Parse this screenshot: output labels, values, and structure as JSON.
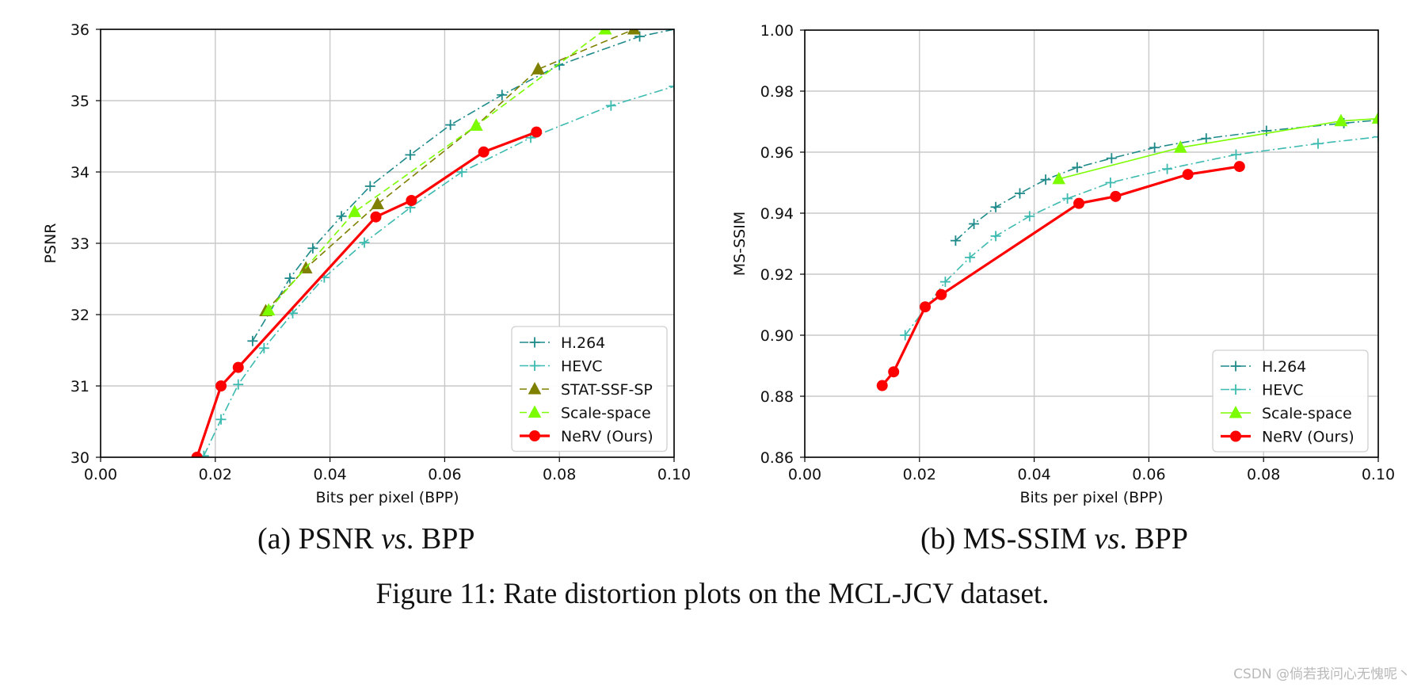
{
  "figure_caption": "Figure 11: Rate distortion plots on the MCL-JCV dataset.",
  "subcaptions": [
    {
      "prefix": "(a) PSNR ",
      "vs": "vs",
      "suffix": ". BPP"
    },
    {
      "prefix": "(b) MS-SSIM ",
      "vs": "vs",
      "suffix": ". BPP"
    }
  ],
  "watermark": "CSDN @倘若我问心无愧呢丶",
  "colors": {
    "h264": "#1f8a8a",
    "hevc": "#3dbbb0",
    "stat": "#808000",
    "scale": "#7cfc00",
    "nerv": "#ff0000",
    "grid": "#c8c8c8"
  },
  "chart_data": [
    {
      "type": "line",
      "title": "",
      "xlabel": "Bits per pixel (BPP)",
      "ylabel": "PSNR",
      "xlim": [
        0.0,
        0.1
      ],
      "ylim": [
        30,
        36
      ],
      "xticks": [
        "0.00",
        "0.02",
        "0.04",
        "0.06",
        "0.08",
        "0.10"
      ],
      "yticks": [
        "30",
        "31",
        "32",
        "33",
        "34",
        "35",
        "36"
      ],
      "grid": true,
      "legend_position": "lower-right",
      "series": [
        {
          "name": "H.264",
          "color": "#1f8a8a",
          "marker": "plus",
          "dash": "dashdot",
          "x": [
            0.0265,
            0.033,
            0.037,
            0.042,
            0.047,
            0.054,
            0.061,
            0.07,
            0.08,
            0.094,
            0.1
          ],
          "y": [
            31.63,
            32.51,
            32.93,
            33.38,
            33.8,
            34.24,
            34.66,
            35.08,
            35.5,
            35.9,
            36.0
          ]
        },
        {
          "name": "HEVC",
          "color": "#3dbbb0",
          "marker": "plus",
          "dash": "dashdot",
          "x": [
            0.018,
            0.021,
            0.024,
            0.0285,
            0.0335,
            0.039,
            0.046,
            0.054,
            0.063,
            0.075,
            0.089,
            0.1
          ],
          "y": [
            30.02,
            30.53,
            31.02,
            31.53,
            32.02,
            32.52,
            33.01,
            33.5,
            34.0,
            34.48,
            34.93,
            35.2
          ]
        },
        {
          "name": "STAT-SSF-SP",
          "color": "#808000",
          "marker": "triangle",
          "dash": "dashed",
          "x": [
            0.0288,
            0.0358,
            0.0483,
            0.0655,
            0.0763,
            0.093
          ],
          "y": [
            32.05,
            32.65,
            33.55,
            34.65,
            35.44,
            36.0
          ]
        },
        {
          "name": "Scale-space",
          "color": "#7cfc00",
          "marker": "triangle",
          "dash": "dashed",
          "x": [
            0.0293,
            0.0443,
            0.0655,
            0.088
          ],
          "y": [
            32.06,
            33.44,
            34.65,
            36.0
          ]
        },
        {
          "name": "NeRV (Ours)",
          "color": "#ff0000",
          "marker": "circle",
          "dash": "solid",
          "x": [
            0.0168,
            0.021,
            0.024,
            0.048,
            0.0542,
            0.0668,
            0.076
          ],
          "y": [
            30.0,
            31.0,
            31.26,
            33.37,
            33.6,
            34.28,
            34.56
          ]
        }
      ]
    },
    {
      "type": "line",
      "title": "",
      "xlabel": "Bits per pixel (BPP)",
      "ylabel": "MS-SSIM",
      "xlim": [
        0.0,
        0.1
      ],
      "ylim": [
        0.86,
        1.0
      ],
      "xticks": [
        "0.00",
        "0.02",
        "0.04",
        "0.06",
        "0.08",
        "0.10"
      ],
      "yticks": [
        "0.86",
        "0.88",
        "0.90",
        "0.92",
        "0.94",
        "0.96",
        "0.98",
        "1.00"
      ],
      "grid": true,
      "legend_position": "lower-right",
      "series": [
        {
          "name": "H.264",
          "color": "#1f8a8a",
          "marker": "plus",
          "dash": "dashdot",
          "x": [
            0.0263,
            0.0295,
            0.0333,
            0.0375,
            0.042,
            0.0475,
            0.0535,
            0.061,
            0.07,
            0.0805,
            0.094,
            0.1
          ],
          "y": [
            0.931,
            0.9365,
            0.942,
            0.9465,
            0.951,
            0.955,
            0.958,
            0.9615,
            0.9645,
            0.967,
            0.9695,
            0.9705
          ]
        },
        {
          "name": "HEVC",
          "color": "#3dbbb0",
          "marker": "plus",
          "dash": "dashdot",
          "x": [
            0.0175,
            0.0245,
            0.0288,
            0.0333,
            0.0392,
            0.0458,
            0.0533,
            0.0632,
            0.0752,
            0.0895,
            0.1
          ],
          "y": [
            0.9,
            0.9175,
            0.9255,
            0.9325,
            0.939,
            0.9448,
            0.95,
            0.9545,
            0.9592,
            0.9628,
            0.965
          ]
        },
        {
          "name": "Scale-space",
          "color": "#7cfc00",
          "marker": "triangle",
          "dash": "solid",
          "x": [
            0.0443,
            0.0655,
            0.0935,
            0.1
          ],
          "y": [
            0.9512,
            0.9615,
            0.9702,
            0.971
          ]
        },
        {
          "name": "NeRV (Ours)",
          "color": "#ff0000",
          "marker": "circle",
          "dash": "solid",
          "x": [
            0.0135,
            0.0155,
            0.021,
            0.0238,
            0.0478,
            0.0542,
            0.0668,
            0.0758
          ],
          "y": [
            0.8835,
            0.888,
            0.9093,
            0.9133,
            0.9432,
            0.9455,
            0.9527,
            0.9553
          ]
        }
      ]
    }
  ]
}
